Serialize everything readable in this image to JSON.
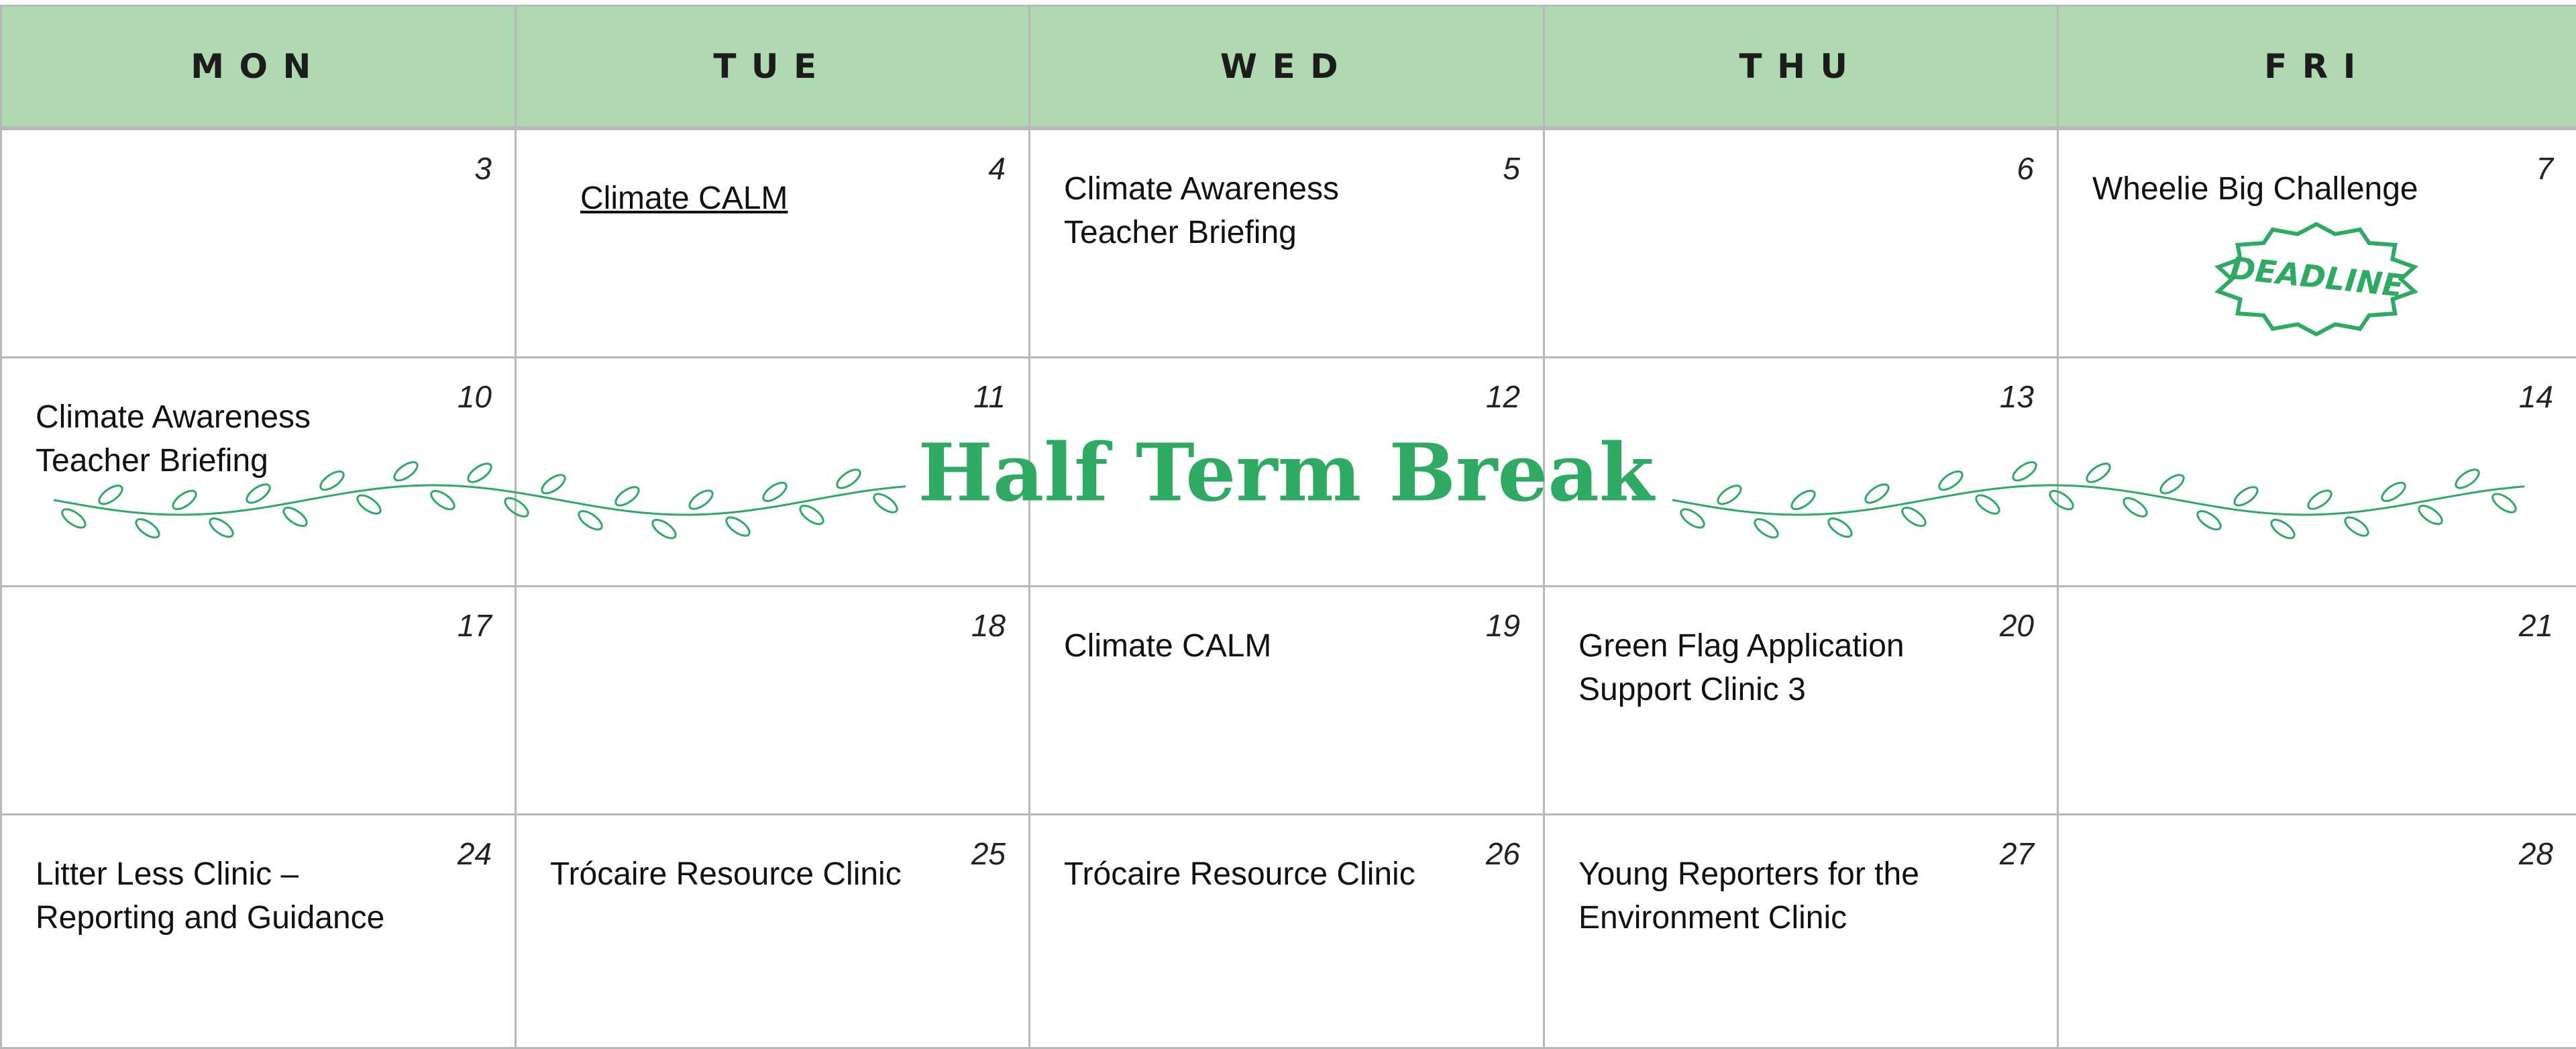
{
  "header": {
    "days": [
      "MON",
      "TUE",
      "WED",
      "THU",
      "FRI"
    ]
  },
  "weeks": [
    {
      "cells": [
        {
          "day": 3,
          "events": []
        },
        {
          "day": 4,
          "events": [
            {
              "text": "Climate CALM",
              "underlined": true
            }
          ]
        },
        {
          "day": 5,
          "events": [
            {
              "text": "Climate Awareness Teacher Briefing"
            }
          ]
        },
        {
          "day": 6,
          "events": []
        },
        {
          "day": 7,
          "events": [
            {
              "text": "Wheelie Big Challenge"
            }
          ],
          "stamp": "DEADLINE"
        }
      ]
    },
    {
      "cells": [
        {
          "day": 10,
          "events": [
            {
              "text": "Climate Awareness Teacher Briefing"
            }
          ]
        },
        {
          "day": 11,
          "events": []
        },
        {
          "day": 12,
          "events": []
        },
        {
          "day": 13,
          "events": []
        },
        {
          "day": 14,
          "events": []
        }
      ]
    },
    {
      "cells": [
        {
          "day": 17,
          "events": []
        },
        {
          "day": 18,
          "events": []
        },
        {
          "day": 19,
          "events": [
            {
              "text": "Climate CALM"
            }
          ]
        },
        {
          "day": 20,
          "events": [
            {
              "text": "Green Flag Application Support Clinic 3"
            }
          ]
        },
        {
          "day": 21,
          "events": []
        }
      ]
    },
    {
      "cells": [
        {
          "day": 24,
          "events": [
            {
              "text": "Litter Less Clinic – Reporting and Guidance"
            }
          ]
        },
        {
          "day": 25,
          "events": [
            {
              "text": "Trócaire Resource Clinic"
            }
          ]
        },
        {
          "day": 26,
          "events": [
            {
              "text": "Trócaire Resource Clinic"
            }
          ]
        },
        {
          "day": 27,
          "events": [
            {
              "text": "Young Reporters for the Environment Clinic"
            }
          ]
        },
        {
          "day": 28,
          "events": []
        }
      ]
    }
  ],
  "banner": {
    "title": "Half Term Break"
  }
}
